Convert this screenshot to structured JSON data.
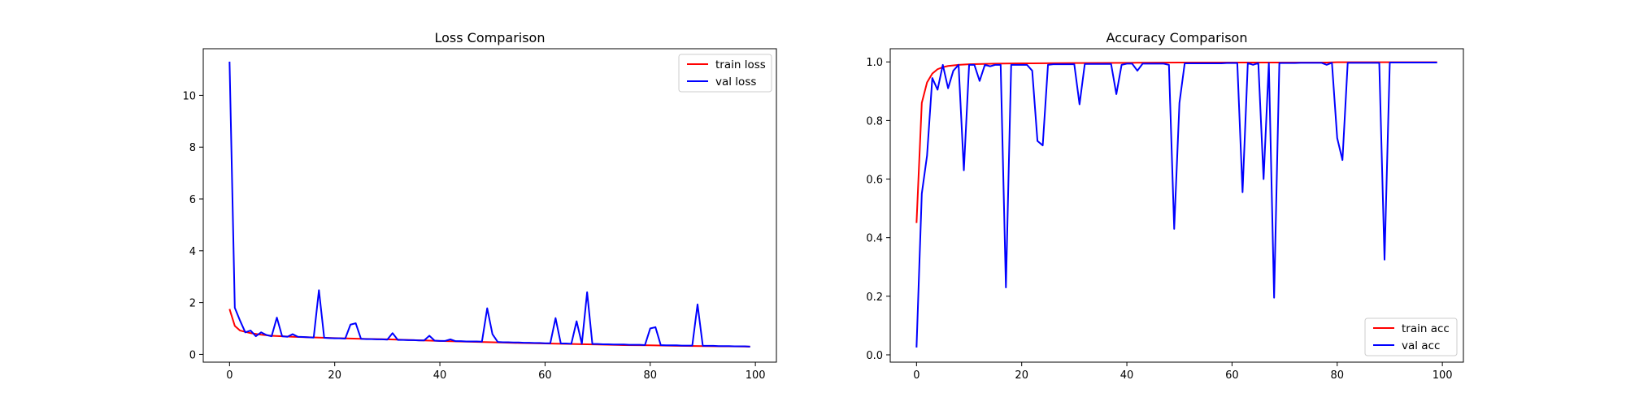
{
  "chart_data": [
    {
      "type": "line",
      "title": "Loss Comparison",
      "xlabel": "",
      "ylabel": "",
      "xlim": [
        -5,
        104
      ],
      "ylim": [
        -0.3,
        11.8
      ],
      "xticks": [
        0,
        20,
        40,
        60,
        80,
        100
      ],
      "yticks": [
        0,
        2,
        4,
        6,
        8,
        10
      ],
      "grid": false,
      "legend": "top-right",
      "series": [
        {
          "name": "train loss",
          "color": "#ff0000",
          "x": [
            0,
            1,
            2,
            4,
            6,
            8,
            10,
            12,
            15,
            20,
            25,
            30,
            35,
            40,
            45,
            50,
            55,
            60,
            65,
            70,
            75,
            80,
            85,
            90,
            95,
            99
          ],
          "y": [
            1.75,
            1.1,
            0.92,
            0.82,
            0.76,
            0.72,
            0.7,
            0.68,
            0.66,
            0.63,
            0.6,
            0.58,
            0.55,
            0.52,
            0.49,
            0.47,
            0.44,
            0.42,
            0.4,
            0.38,
            0.36,
            0.35,
            0.33,
            0.32,
            0.31,
            0.3
          ]
        },
        {
          "name": "val loss",
          "color": "#0000ff",
          "x": [
            0,
            1,
            2,
            3,
            4,
            5,
            6,
            7,
            8,
            9,
            10,
            11,
            12,
            13,
            14,
            15,
            16,
            17,
            18,
            19,
            20,
            21,
            22,
            23,
            24,
            25,
            26,
            27,
            28,
            29,
            30,
            31,
            32,
            33,
            34,
            35,
            36,
            37,
            38,
            39,
            40,
            41,
            42,
            43,
            44,
            45,
            46,
            47,
            48,
            49,
            50,
            51,
            52,
            53,
            54,
            55,
            56,
            57,
            58,
            59,
            60,
            61,
            62,
            63,
            64,
            65,
            66,
            67,
            68,
            69,
            70,
            71,
            72,
            73,
            74,
            75,
            76,
            77,
            78,
            79,
            80,
            81,
            82,
            83,
            84,
            85,
            86,
            87,
            88,
            89,
            90,
            91,
            92,
            93,
            94,
            95,
            96,
            97,
            98,
            99
          ],
          "y": [
            11.3,
            1.8,
            1.3,
            0.85,
            0.92,
            0.7,
            0.85,
            0.75,
            0.7,
            1.42,
            0.7,
            0.68,
            0.78,
            0.68,
            0.67,
            0.66,
            0.65,
            2.48,
            0.64,
            0.63,
            0.62,
            0.62,
            0.61,
            1.15,
            1.2,
            0.6,
            0.59,
            0.59,
            0.58,
            0.58,
            0.57,
            0.82,
            0.56,
            0.56,
            0.55,
            0.55,
            0.54,
            0.54,
            0.72,
            0.53,
            0.52,
            0.52,
            0.58,
            0.51,
            0.51,
            0.5,
            0.5,
            0.5,
            0.49,
            1.78,
            0.78,
            0.48,
            0.47,
            0.47,
            0.46,
            0.46,
            0.45,
            0.45,
            0.44,
            0.44,
            0.43,
            0.43,
            1.4,
            0.42,
            0.42,
            0.41,
            1.28,
            0.41,
            2.4,
            0.4,
            0.4,
            0.39,
            0.39,
            0.38,
            0.38,
            0.38,
            0.37,
            0.37,
            0.37,
            0.36,
            1.0,
            1.05,
            0.36,
            0.35,
            0.35,
            0.35,
            0.34,
            0.34,
            0.34,
            1.93,
            0.33,
            0.33,
            0.33,
            0.32,
            0.32,
            0.32,
            0.31,
            0.31,
            0.31,
            0.3
          ]
        }
      ]
    },
    {
      "type": "line",
      "title": "Accuracy Comparison",
      "xlabel": "",
      "ylabel": "",
      "xlim": [
        -5,
        104
      ],
      "ylim": [
        -0.025,
        1.045
      ],
      "xticks": [
        0,
        20,
        40,
        60,
        80,
        100
      ],
      "yticks": [
        0.0,
        0.2,
        0.4,
        0.6,
        0.8,
        1.0
      ],
      "ytick_labels": [
        "0.0",
        "0.2",
        "0.4",
        "0.6",
        "0.8",
        "1.0"
      ],
      "grid": false,
      "legend": "bottom-right",
      "series": [
        {
          "name": "train acc",
          "color": "#ff0000",
          "x": [
            0,
            1,
            2,
            3,
            4,
            5,
            6,
            8,
            10,
            15,
            20,
            30,
            40,
            50,
            60,
            70,
            78,
            80,
            90,
            99
          ],
          "y": [
            0.45,
            0.86,
            0.93,
            0.96,
            0.975,
            0.982,
            0.986,
            0.99,
            0.992,
            0.994,
            0.995,
            0.996,
            0.997,
            0.998,
            0.998,
            0.998,
            0.998,
            0.999,
            0.999,
            0.999
          ]
        },
        {
          "name": "val acc",
          "color": "#0000ff",
          "x": [
            0,
            1,
            2,
            3,
            4,
            5,
            6,
            7,
            8,
            9,
            10,
            11,
            12,
            13,
            14,
            15,
            16,
            17,
            18,
            19,
            20,
            21,
            22,
            23,
            24,
            25,
            26,
            27,
            28,
            29,
            30,
            31,
            32,
            33,
            34,
            35,
            36,
            37,
            38,
            39,
            40,
            41,
            42,
            43,
            44,
            45,
            46,
            47,
            48,
            49,
            50,
            51,
            52,
            53,
            54,
            55,
            56,
            57,
            58,
            59,
            60,
            61,
            62,
            63,
            64,
            65,
            66,
            67,
            68,
            69,
            70,
            71,
            72,
            73,
            74,
            75,
            76,
            77,
            78,
            79,
            80,
            81,
            82,
            83,
            84,
            85,
            86,
            87,
            88,
            89,
            90,
            91,
            92,
            93,
            94,
            95,
            96,
            97,
            98,
            99
          ],
          "y": [
            0.025,
            0.55,
            0.68,
            0.945,
            0.905,
            0.99,
            0.91,
            0.97,
            0.99,
            0.63,
            0.99,
            0.99,
            0.935,
            0.99,
            0.985,
            0.99,
            0.99,
            0.23,
            0.99,
            0.99,
            0.99,
            0.99,
            0.97,
            0.73,
            0.715,
            0.99,
            0.992,
            0.992,
            0.992,
            0.992,
            0.992,
            0.855,
            0.993,
            0.993,
            0.993,
            0.993,
            0.993,
            0.993,
            0.89,
            0.99,
            0.994,
            0.994,
            0.97,
            0.994,
            0.994,
            0.994,
            0.994,
            0.994,
            0.99,
            0.43,
            0.86,
            0.995,
            0.995,
            0.995,
            0.995,
            0.995,
            0.995,
            0.995,
            0.995,
            0.996,
            0.996,
            0.996,
            0.555,
            0.996,
            0.99,
            0.996,
            0.6,
            0.996,
            0.195,
            0.996,
            0.996,
            0.996,
            0.996,
            0.997,
            0.997,
            0.997,
            0.997,
            0.997,
            0.99,
            0.997,
            0.74,
            0.665,
            0.997,
            0.997,
            0.997,
            0.997,
            0.997,
            0.997,
            0.997,
            0.325,
            0.998,
            0.998,
            0.998,
            0.998,
            0.998,
            0.998,
            0.998,
            0.998,
            0.998,
            0.998
          ]
        }
      ]
    }
  ]
}
